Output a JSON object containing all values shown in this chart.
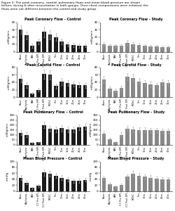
{
  "figure_text": "Figure 3: The peak coronary, carotid, pulmonary flows and mean blood pressure are shown\nbefore, during & after resuscitation in both groups. Once chest compressions were initiated, the\nflows were not different between the control and study group.",
  "x_labels": [
    "Base",
    "Asphyxia",
    "PAV",
    "CC Pre EPI",
    "CC Post EPI",
    "ROSC",
    "5m",
    "10m",
    "15m",
    "20m",
    "25m",
    "30m"
  ],
  "subplots": [
    {
      "title": "Peak Coronary Flow - Control",
      "ylabel": "ml/Kg/min",
      "ylim": [
        0,
        40
      ],
      "yticks": [
        0,
        10,
        20,
        30,
        40
      ],
      "bar_color": "#1a1a1a",
      "values": [
        30,
        22,
        8,
        14,
        27,
        23,
        20,
        14,
        10,
        9,
        8,
        8
      ],
      "errors": [
        6,
        5,
        3,
        4,
        7,
        6,
        5,
        4,
        3,
        3,
        3,
        2
      ]
    },
    {
      "title": "Peak Coronary Flow - Study",
      "ylabel": "ml/Kg/min",
      "ylim": [
        0,
        40
      ],
      "yticks": [
        0,
        10,
        20,
        30,
        40
      ],
      "bar_color": "#888888",
      "values": [
        10,
        8,
        8,
        8,
        12,
        10,
        9,
        8,
        7,
        7,
        6,
        6
      ],
      "errors": [
        3,
        2,
        2,
        2,
        4,
        3,
        3,
        2,
        2,
        2,
        2,
        2
      ]
    },
    {
      "title": "Peak Carotid Flow – Control",
      "ylabel": "ml/Kg/min",
      "ylim": [
        0,
        80
      ],
      "yticks": [
        0,
        20,
        40,
        60,
        80
      ],
      "bar_color": "#1a1a1a",
      "values": [
        50,
        32,
        10,
        20,
        62,
        60,
        30,
        42,
        38,
        35,
        33,
        32
      ],
      "errors": [
        10,
        8,
        3,
        5,
        12,
        12,
        7,
        9,
        8,
        7,
        7,
        7
      ]
    },
    {
      "title": "Peak Carotid Flow - Study",
      "ylabel": "ml/Kg/min",
      "ylim": [
        0,
        80
      ],
      "yticks": [
        0,
        20,
        40,
        60,
        80
      ],
      "bar_color": "#888888",
      "values": [
        48,
        22,
        18,
        25,
        55,
        52,
        42,
        38,
        35,
        32,
        40,
        38
      ],
      "errors": [
        10,
        6,
        5,
        6,
        10,
        10,
        9,
        8,
        8,
        7,
        8,
        8
      ]
    },
    {
      "title": "Peak Pulmonary Flow – Control",
      "ylabel": "ml/Kg/min",
      "ylim": [
        0,
        300
      ],
      "yticks": [
        0,
        50,
        100,
        150,
        200,
        250,
        300
      ],
      "bar_color": "#1a1a1a",
      "values": [
        120,
        100,
        18,
        22,
        200,
        160,
        155,
        165,
        155,
        155,
        175,
        185
      ],
      "errors": [
        25,
        22,
        5,
        6,
        35,
        30,
        28,
        30,
        28,
        28,
        30,
        32
      ]
    },
    {
      "title": "Peak Pulmonary Flow - Study",
      "ylabel": "ml/Kg/min",
      "ylim": [
        0,
        300
      ],
      "yticks": [
        0,
        50,
        100,
        150,
        200,
        250,
        300
      ],
      "bar_color": "#888888",
      "values": [
        110,
        55,
        25,
        100,
        160,
        155,
        150,
        148,
        145,
        145,
        140,
        138
      ],
      "errors": [
        24,
        15,
        7,
        22,
        28,
        28,
        26,
        26,
        25,
        25,
        24,
        24
      ]
    },
    {
      "title": "Mean Blood Pressure - Control",
      "ylabel": "mmHg",
      "ylim": [
        0,
        100
      ],
      "yticks": [
        0,
        20,
        40,
        60,
        80,
        100
      ],
      "bar_color": "#1a1a1a",
      "values": [
        45,
        28,
        10,
        18,
        62,
        58,
        52,
        45,
        40,
        35,
        35,
        38
      ],
      "errors": [
        8,
        6,
        3,
        4,
        10,
        10,
        9,
        8,
        7,
        7,
        7,
        7
      ]
    },
    {
      "title": "Mean Blood Pressure - Study",
      "ylabel": "mmHg",
      "ylim": [
        0,
        100
      ],
      "yticks": [
        0,
        20,
        40,
        60,
        80,
        100
      ],
      "bar_color": "#888888",
      "values": [
        44,
        22,
        15,
        20,
        48,
        58,
        52,
        48,
        45,
        42,
        40,
        40
      ],
      "errors": [
        8,
        5,
        4,
        5,
        9,
        10,
        9,
        8,
        8,
        7,
        7,
        7
      ]
    }
  ]
}
